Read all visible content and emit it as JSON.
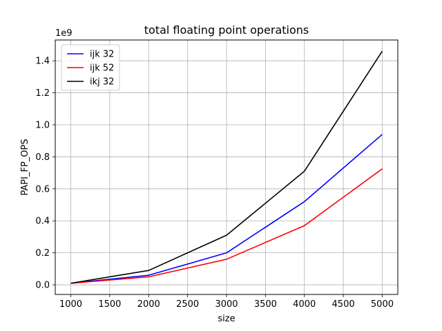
{
  "chart_data": {
    "type": "line",
    "title": "total floating point operations",
    "xlabel": "size",
    "ylabel": "PAPI_FP_OPS",
    "y_multiplier_label": "1e9",
    "x": [
      1000,
      2000,
      3000,
      4000,
      5000
    ],
    "xlim": [
      800,
      5200
    ],
    "ylim": [
      -0.06,
      1.53
    ],
    "x_ticks": [
      1000,
      1500,
      2000,
      2500,
      3000,
      3500,
      4000,
      4500,
      5000
    ],
    "y_ticks": [
      0.0,
      0.2,
      0.4,
      0.6,
      0.8,
      1.0,
      1.2,
      1.4
    ],
    "y_tick_labels": [
      "0.0",
      "0.2",
      "0.4",
      "0.6",
      "0.8",
      "1.0",
      "1.2",
      "1.4"
    ],
    "grid": true,
    "legend_position": "top-left",
    "series": [
      {
        "name": "ijk 32",
        "color": "#0000ff",
        "values": [
          0.01,
          0.06,
          0.2,
          0.52,
          0.94
        ]
      },
      {
        "name": "ijk 52",
        "color": "#ff0000",
        "values": [
          0.01,
          0.05,
          0.16,
          0.37,
          0.725
        ]
      },
      {
        "name": "ikj 32",
        "color": "#000000",
        "values": [
          0.01,
          0.09,
          0.31,
          0.71,
          1.46
        ]
      }
    ]
  }
}
